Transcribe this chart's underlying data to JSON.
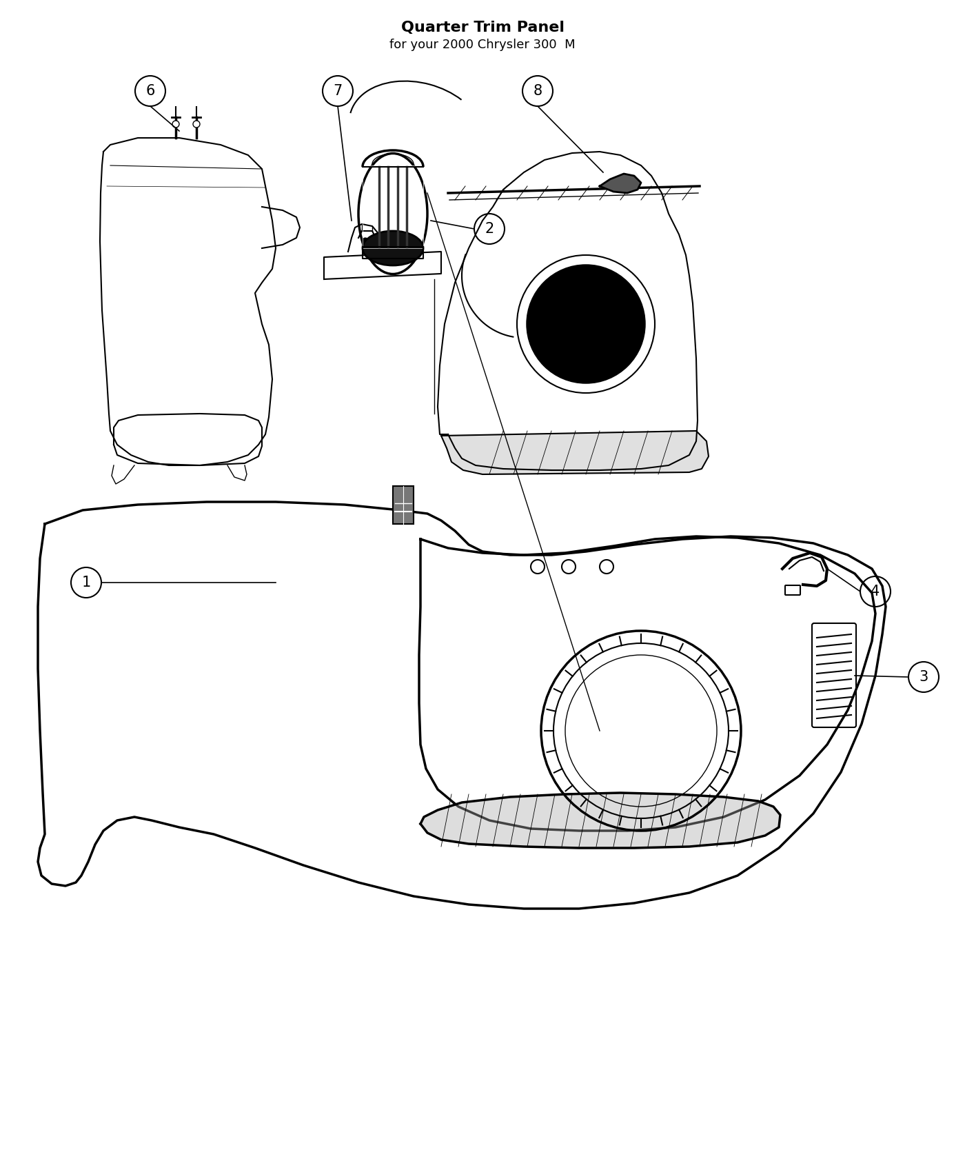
{
  "title": "Quarter Trim Panel",
  "subtitle": "for your 2000 Chrysler 300  M",
  "background_color": "#ffffff",
  "line_color": "#000000",
  "title_fontsize": 16,
  "subtitle_fontsize": 13,
  "figsize": [
    14.0,
    17.0
  ],
  "dpi": 100,
  "xlim": [
    0,
    1400
  ],
  "ylim": [
    0,
    1700
  ]
}
